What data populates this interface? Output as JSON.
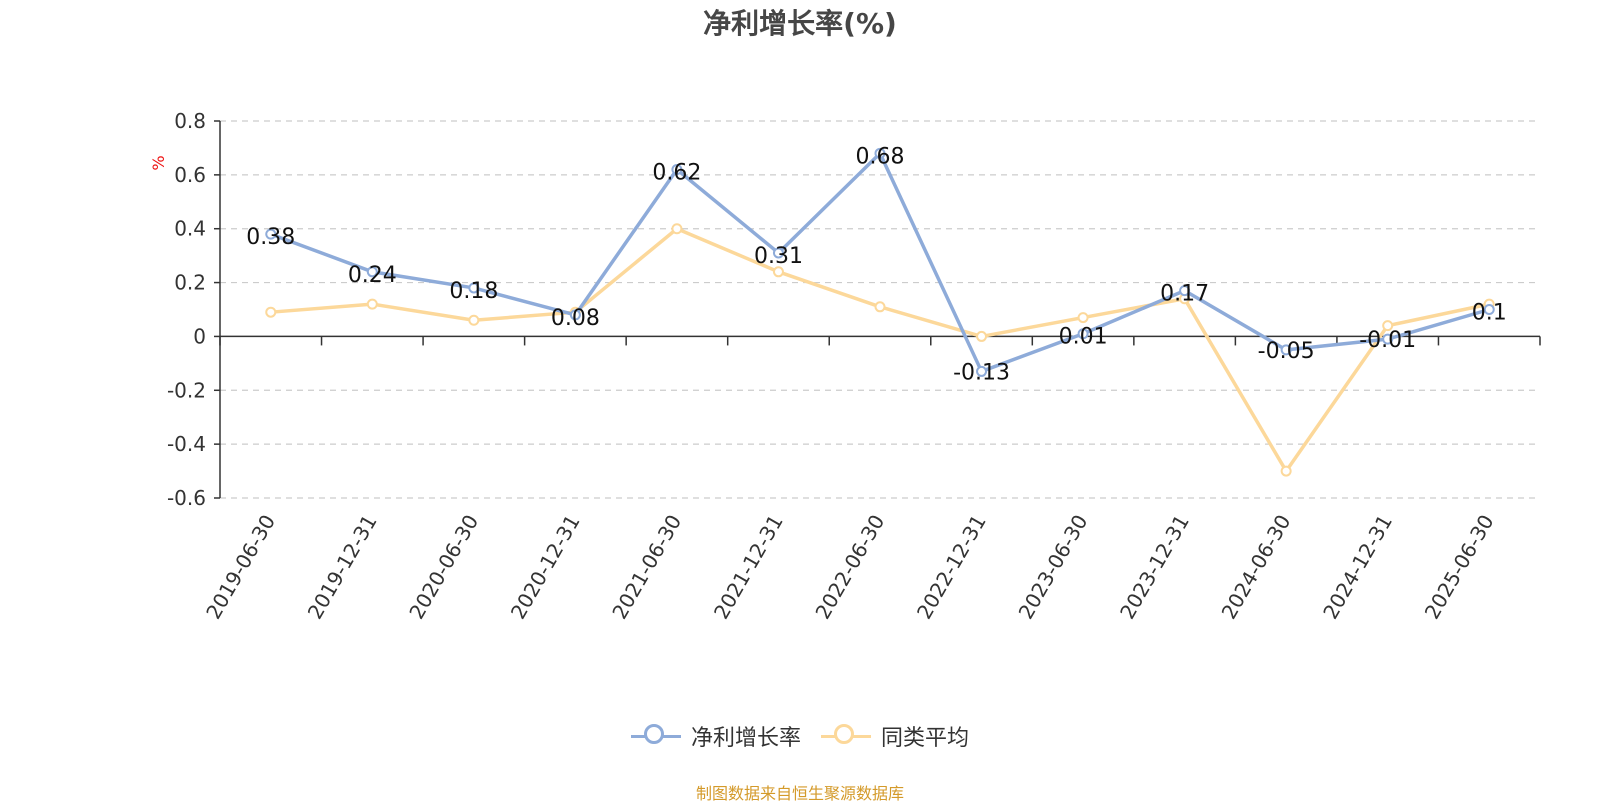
{
  "chart_data": {
    "type": "line",
    "title": "净利增长率(%)",
    "ylabel": "%",
    "xlabel": "",
    "ylim": [
      -0.6,
      0.8
    ],
    "yticks": [
      0.8,
      0.6,
      0.4,
      0.2,
      0,
      -0.2,
      -0.4,
      -0.6
    ],
    "ytick_labels": [
      "0.8",
      "0.6",
      "0.4",
      "0.2",
      "0",
      "-0.2",
      "-0.4",
      "-0.6"
    ],
    "grid": true,
    "legend_position": "bottom",
    "categories": [
      "2019-06-30",
      "2019-12-31",
      "2020-06-30",
      "2020-12-31",
      "2021-06-30",
      "2021-12-31",
      "2022-06-30",
      "2022-12-31",
      "2023-06-30",
      "2023-12-31",
      "2024-06-30",
      "2024-12-31",
      "2025-06-30"
    ],
    "series": [
      {
        "name": "净利增长率",
        "color": "#8eabd9",
        "values": [
          0.38,
          0.24,
          0.18,
          0.08,
          0.62,
          0.31,
          0.68,
          -0.13,
          0.01,
          0.17,
          -0.05,
          -0.01,
          0.1
        ],
        "labels": [
          "0.38",
          "0.24",
          "0.18",
          "0.08",
          "0.62",
          "0.31",
          "0.68",
          "-0.13",
          "0.01",
          "0.17",
          "-0.05",
          "-0.01",
          "0.1"
        ]
      },
      {
        "name": "同类平均",
        "color": "#fcd89a",
        "values": [
          0.09,
          0.12,
          0.06,
          0.09,
          0.4,
          0.24,
          0.11,
          0.0,
          0.07,
          0.14,
          -0.5,
          0.04,
          0.12
        ]
      }
    ]
  },
  "source_note": "制图数据来自恒生聚源数据库",
  "source_note_color": "#d49a2a",
  "ylabel_color": "#ee1111"
}
